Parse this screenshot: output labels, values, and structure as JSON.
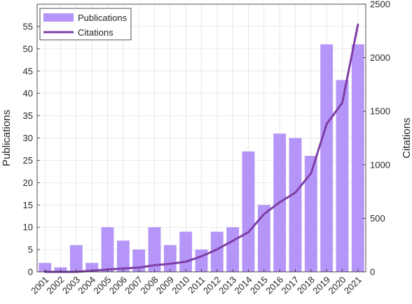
{
  "chart_data": {
    "type": "bar",
    "categories": [
      "2001",
      "2002",
      "2003",
      "2004",
      "2005",
      "2006",
      "2007",
      "2008",
      "2009",
      "2010",
      "2011",
      "2012",
      "2013",
      "2014",
      "2015",
      "2016",
      "2017",
      "2018",
      "2019",
      "2020",
      "2021"
    ],
    "series": [
      {
        "name": "Publications",
        "type": "bar",
        "axis": "left",
        "color": "#b595f7",
        "values": [
          2,
          1,
          6,
          2,
          10,
          7,
          5,
          10,
          6,
          9,
          5,
          9,
          10,
          27,
          15,
          31,
          30,
          26,
          51,
          43,
          51
        ]
      },
      {
        "name": "Citations",
        "type": "line",
        "axis": "right",
        "color": "#7e3fa6",
        "values": [
          0,
          0,
          0,
          10,
          22,
          32,
          40,
          62,
          75,
          95,
          145,
          210,
          290,
          370,
          540,
          650,
          740,
          920,
          1380,
          1580,
          2310
        ]
      }
    ],
    "ylabel": "Publications",
    "y2label": "Citations",
    "ylim": [
      0,
      60
    ],
    "y2lim": [
      0,
      2500
    ],
    "yticks": [
      "0",
      "5",
      "10",
      "15",
      "20",
      "25",
      "30",
      "35",
      "40",
      "45",
      "50",
      "55"
    ],
    "y2ticks": [
      "0",
      "500",
      "1000",
      "1500",
      "2000",
      "2500"
    ],
    "grid": true,
    "legend": "top-left"
  }
}
